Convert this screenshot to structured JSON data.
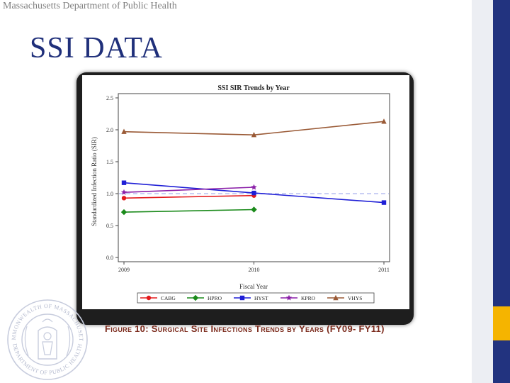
{
  "header": {
    "org": "Massachusetts Department of Public Health"
  },
  "slide": {
    "title": "SSI DATA"
  },
  "caption": "Figure 10: Surgical Site Infections Trends by Years (FY09- FY11)",
  "seal": {
    "text_top": "COMMONWEALTH OF MASSACHUSETTS",
    "text_bottom": "DEPARTMENT OF PUBLIC HEALTH"
  },
  "colors": {
    "navy": "#22337f",
    "gold": "#f5b400",
    "caption": "#7b2a1c",
    "title": "#1f2f7a"
  },
  "chart_data": {
    "type": "line",
    "title": "SSI SIR Trends by Year",
    "xlabel": "Fiscal Year",
    "ylabel": "Standardized Infection Ratio (SIR)",
    "categories": [
      "2009",
      "2010",
      "2011"
    ],
    "ylim": [
      0,
      2.5
    ],
    "yticks": [
      "0.0",
      "0.5",
      "1.0",
      "1.5",
      "2.0",
      "2.5"
    ],
    "reference_line": 1.0,
    "legend_position": "bottom",
    "series": [
      {
        "name": "CABG",
        "color": "#e31a1c",
        "marker": "circle",
        "values": [
          0.93,
          0.97,
          null
        ]
      },
      {
        "name": "HPRO",
        "color": "#1a8a1a",
        "marker": "diamond",
        "values": [
          0.71,
          0.75,
          null
        ]
      },
      {
        "name": "HYST",
        "color": "#1f1fd6",
        "marker": "square",
        "values": [
          1.17,
          1.01,
          0.86
        ]
      },
      {
        "name": "KPRO",
        "color": "#8a1fa8",
        "marker": "star",
        "values": [
          1.02,
          1.1,
          null
        ]
      },
      {
        "name": "VHYS",
        "color": "#9a5a36",
        "marker": "triangle",
        "values": [
          1.97,
          1.92,
          2.13
        ]
      }
    ]
  }
}
